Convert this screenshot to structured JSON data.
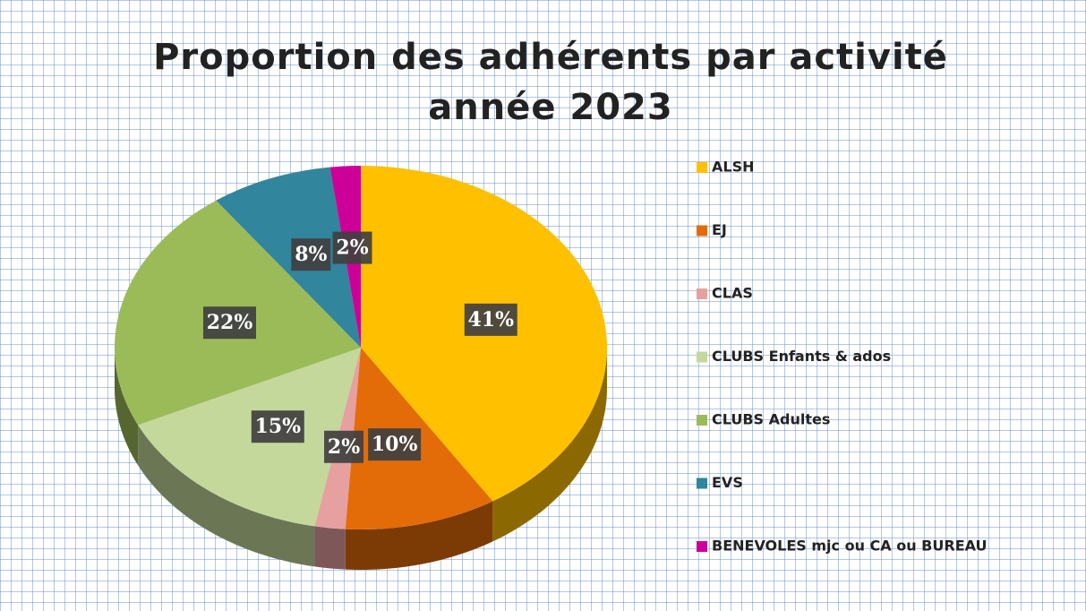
{
  "chart_data": {
    "type": "pie",
    "title": "Proportion des adhérents par activité année 2023",
    "categories": [
      "ALSH",
      "EJ",
      "CLAS",
      "CLUBS Enfants & ados",
      "CLUBS Adultes",
      "EVS",
      "BENEVOLES mjc ou CA ou BUREAU"
    ],
    "values": [
      41,
      10,
      2,
      15,
      22,
      8,
      2
    ],
    "value_labels": [
      "41%",
      "10%",
      "2%",
      "15%",
      "22%",
      "8%",
      "2%"
    ],
    "colors": [
      "#ffc000",
      "#e36c09",
      "#e6a0a0",
      "#c4d89b",
      "#9bbb59",
      "#31859c",
      "#cc0099"
    ],
    "legend": "right"
  }
}
